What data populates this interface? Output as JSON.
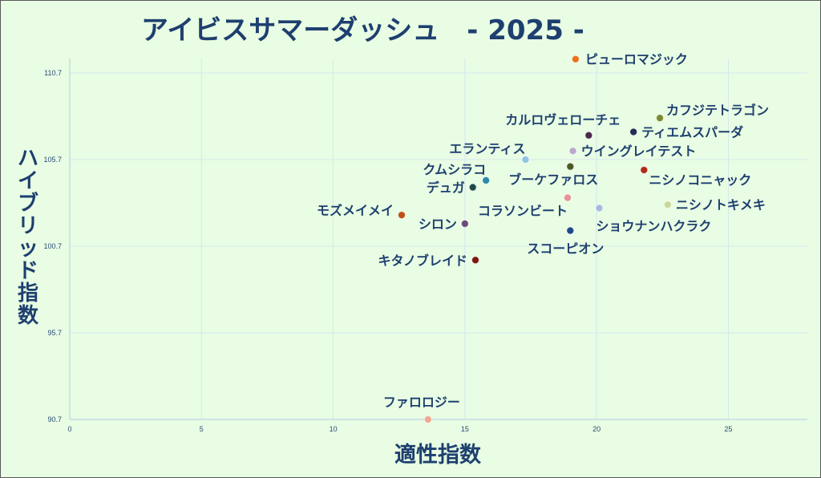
{
  "chart_data": {
    "type": "scatter",
    "title": "アイビスサマーダッシュ　- 2025 -",
    "xlabel": "適性指数",
    "ylabel": "ハイブリッド指数",
    "xlim": [
      0,
      28
    ],
    "ylim": [
      90.7,
      111.5
    ],
    "xticks": [
      0,
      5,
      10,
      15,
      20,
      25
    ],
    "yticks": [
      90.7,
      95.7,
      100.7,
      105.7,
      110.7
    ],
    "grid": true,
    "points": [
      {
        "label": "ピューロマジック",
        "x": 19.2,
        "y": 111.5,
        "color": "#e8731c"
      },
      {
        "label": "カフジテトラゴン",
        "x": 22.4,
        "y": 108.1,
        "color": "#7a8a2c"
      },
      {
        "label": "カルロヴェローチェ",
        "x": 19.7,
        "y": 107.1,
        "color": "#4a2a48"
      },
      {
        "label": "ティエムスパーダ",
        "x": 21.4,
        "y": 107.3,
        "color": "#1f2e52"
      },
      {
        "label": "エランティス",
        "x": 17.3,
        "y": 105.7,
        "color": "#8fc4e0"
      },
      {
        "label": "ウイングレイテスト",
        "x": 19.1,
        "y": 106.2,
        "color": "#b9a8cc"
      },
      {
        "label": "ブーケファロス",
        "x": 19.0,
        "y": 105.3,
        "color": "#4a5a22"
      },
      {
        "label": "ニシノコニャック",
        "x": 21.8,
        "y": 105.1,
        "color": "#b02a1a"
      },
      {
        "label": "クムシラコ",
        "x": 15.8,
        "y": 104.5,
        "color": "#2a8aa8"
      },
      {
        "label": "デュガ",
        "x": 15.3,
        "y": 104.1,
        "color": "#1f4a4a"
      },
      {
        "label": "コラソンビート",
        "x": 18.9,
        "y": 103.5,
        "color": "#e8909a"
      },
      {
        "label": "ニシノトキメキ",
        "x": 22.7,
        "y": 103.1,
        "color": "#c8d89a"
      },
      {
        "label": "ショウナンハクラク",
        "x": 20.1,
        "y": 102.9,
        "color": "#a8b8e0"
      },
      {
        "label": "モズメイメイ",
        "x": 12.6,
        "y": 102.5,
        "color": "#c0501a"
      },
      {
        "label": "シロン",
        "x": 15.0,
        "y": 102.0,
        "color": "#6a4a7a"
      },
      {
        "label": "スコーピオン",
        "x": 19.0,
        "y": 101.6,
        "color": "#1f4a8a"
      },
      {
        "label": "キタノブレイド",
        "x": 15.4,
        "y": 99.9,
        "color": "#7a1a10"
      },
      {
        "label": "ファロロジー",
        "x": 13.6,
        "y": 90.7,
        "color": "#f0a890"
      }
    ]
  }
}
